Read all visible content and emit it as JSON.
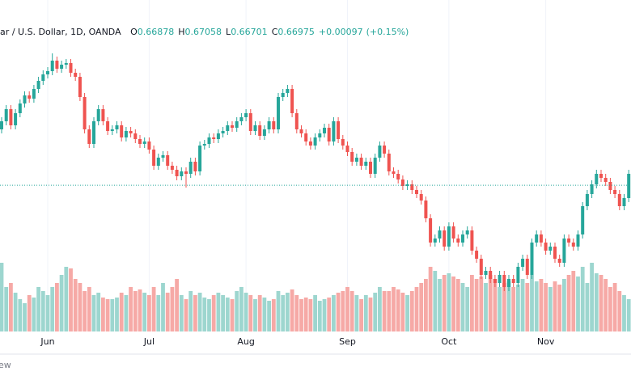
{
  "chart_data": {
    "type": "candlestick",
    "header": {
      "symbol": "lar / U.S. Dollar, 1D, OANDA",
      "ohlc": [
        {
          "label": "O",
          "value": 0.66878
        },
        {
          "label": "H",
          "value": 0.67058
        },
        {
          "label": "L",
          "value": 0.66701
        },
        {
          "label": "C",
          "value": 0.66975
        }
      ],
      "change": "+0.00097",
      "change_pct": "(+0.15%)"
    },
    "footer_text": "ew",
    "up_color": "#26a69a",
    "down_color": "#ef5350",
    "volume_up_color": "#9dd6cf",
    "volume_down_color": "#f6a9a6",
    "grid": true,
    "ylim": [
      0.6155,
      0.7385
    ],
    "vlim": [
      0,
      410
    ],
    "categories": [
      null,
      null,
      null,
      null,
      null,
      null,
      null,
      null,
      null,
      null,
      "Jun",
      null,
      null,
      null,
      null,
      null,
      null,
      null,
      null,
      null,
      null,
      null,
      null,
      null,
      null,
      null,
      null,
      null,
      null,
      null,
      null,
      null,
      "Jul",
      null,
      null,
      null,
      null,
      null,
      null,
      null,
      null,
      null,
      null,
      null,
      null,
      null,
      null,
      null,
      null,
      null,
      null,
      null,
      null,
      "Aug",
      null,
      null,
      null,
      null,
      null,
      null,
      null,
      null,
      null,
      null,
      null,
      null,
      null,
      null,
      null,
      null,
      null,
      null,
      null,
      null,
      null,
      "Sep",
      null,
      null,
      null,
      null,
      null,
      null,
      null,
      null,
      null,
      null,
      null,
      null,
      null,
      null,
      null,
      null,
      null,
      null,
      null,
      null,
      null,
      "Oct",
      null,
      null,
      null,
      null,
      null,
      null,
      null,
      null,
      null,
      null,
      null,
      null,
      null,
      null,
      null,
      null,
      null,
      null,
      null,
      null,
      "Nov",
      null,
      null,
      null,
      null,
      null,
      null,
      null,
      null,
      null,
      null,
      null,
      null,
      null,
      null,
      null,
      null,
      null,
      null
    ],
    "ohlc": [
      [
        0.6905,
        0.695,
        0.689,
        0.6935
      ],
      [
        0.6935,
        0.6995,
        0.692,
        0.698
      ],
      [
        0.698,
        0.6995,
        0.6905,
        0.692
      ],
      [
        0.692,
        0.698,
        0.6905,
        0.6965
      ],
      [
        0.6965,
        0.7016,
        0.695,
        0.7001
      ],
      [
        0.7001,
        0.7046,
        0.6986,
        0.7031
      ],
      [
        0.7031,
        0.7046,
        0.7004,
        0.7019
      ],
      [
        0.7019,
        0.707,
        0.7004,
        0.7055
      ],
      [
        0.7055,
        0.71,
        0.704,
        0.7085
      ],
      [
        0.7085,
        0.7124,
        0.707,
        0.7109
      ],
      [
        0.7109,
        0.7136,
        0.7094,
        0.7121
      ],
      [
        0.7121,
        0.7187,
        0.7106,
        0.716
      ],
      [
        0.716,
        0.7175,
        0.7115,
        0.713
      ],
      [
        0.713,
        0.716,
        0.7115,
        0.7145
      ],
      [
        0.7145,
        0.7166,
        0.713,
        0.7151
      ],
      [
        0.7151,
        0.7166,
        0.71,
        0.7115
      ],
      [
        0.7115,
        0.713,
        0.7085,
        0.71
      ],
      [
        0.71,
        0.7115,
        0.701,
        0.7025
      ],
      [
        0.7025,
        0.704,
        0.689,
        0.6905
      ],
      [
        0.6905,
        0.692,
        0.6836,
        0.6851
      ],
      [
        0.6851,
        0.695,
        0.6836,
        0.6935
      ],
      [
        0.6935,
        0.6995,
        0.692,
        0.698
      ],
      [
        0.698,
        0.6995,
        0.692,
        0.6935
      ],
      [
        0.6935,
        0.695,
        0.6884,
        0.6899
      ],
      [
        0.6899,
        0.692,
        0.6884,
        0.6905
      ],
      [
        0.6905,
        0.6935,
        0.689,
        0.692
      ],
      [
        0.692,
        0.6935,
        0.686,
        0.6875
      ],
      [
        0.6875,
        0.6914,
        0.686,
        0.6899
      ],
      [
        0.6899,
        0.6914,
        0.6875,
        0.689
      ],
      [
        0.689,
        0.6905,
        0.6854,
        0.6869
      ],
      [
        0.6869,
        0.6884,
        0.6836,
        0.6851
      ],
      [
        0.6851,
        0.6875,
        0.6836,
        0.686
      ],
      [
        0.686,
        0.6875,
        0.6815,
        0.683
      ],
      [
        0.683,
        0.6845,
        0.6755,
        0.677
      ],
      [
        0.677,
        0.6815,
        0.6755,
        0.68
      ],
      [
        0.68,
        0.6824,
        0.6785,
        0.6809
      ],
      [
        0.6809,
        0.6824,
        0.6755,
        0.677
      ],
      [
        0.677,
        0.6785,
        0.674,
        0.6755
      ],
      [
        0.6755,
        0.677,
        0.6716,
        0.6731
      ],
      [
        0.6731,
        0.6764,
        0.6716,
        0.6749
      ],
      [
        0.6749,
        0.6764,
        0.6689,
        0.674
      ],
      [
        0.674,
        0.68,
        0.6725,
        0.6785
      ],
      [
        0.6785,
        0.68,
        0.6734,
        0.6749
      ],
      [
        0.6749,
        0.686,
        0.6734,
        0.6845
      ],
      [
        0.6845,
        0.6866,
        0.683,
        0.6851
      ],
      [
        0.6851,
        0.689,
        0.6836,
        0.6875
      ],
      [
        0.6875,
        0.689,
        0.6854,
        0.6869
      ],
      [
        0.6869,
        0.6905,
        0.6854,
        0.689
      ],
      [
        0.689,
        0.6914,
        0.6875,
        0.6899
      ],
      [
        0.6899,
        0.6935,
        0.6884,
        0.692
      ],
      [
        0.692,
        0.6935,
        0.6896,
        0.6911
      ],
      [
        0.6911,
        0.695,
        0.6896,
        0.6935
      ],
      [
        0.6935,
        0.6965,
        0.692,
        0.695
      ],
      [
        0.695,
        0.698,
        0.6935,
        0.6965
      ],
      [
        0.6965,
        0.698,
        0.6884,
        0.6899
      ],
      [
        0.6899,
        0.6935,
        0.6884,
        0.692
      ],
      [
        0.692,
        0.6935,
        0.6866,
        0.6881
      ],
      [
        0.6881,
        0.692,
        0.6866,
        0.6905
      ],
      [
        0.6905,
        0.695,
        0.689,
        0.6935
      ],
      [
        0.6935,
        0.695,
        0.689,
        0.6905
      ],
      [
        0.6905,
        0.704,
        0.689,
        0.7025
      ],
      [
        0.7025,
        0.7055,
        0.701,
        0.704
      ],
      [
        0.704,
        0.707,
        0.7025,
        0.7055
      ],
      [
        0.7055,
        0.707,
        0.695,
        0.6965
      ],
      [
        0.6965,
        0.698,
        0.689,
        0.6905
      ],
      [
        0.6905,
        0.692,
        0.6875,
        0.689
      ],
      [
        0.689,
        0.6905,
        0.6845,
        0.686
      ],
      [
        0.686,
        0.6875,
        0.683,
        0.6845
      ],
      [
        0.6845,
        0.689,
        0.683,
        0.6875
      ],
      [
        0.6875,
        0.6905,
        0.686,
        0.689
      ],
      [
        0.689,
        0.6926,
        0.6875,
        0.6911
      ],
      [
        0.6911,
        0.6926,
        0.6845,
        0.686
      ],
      [
        0.686,
        0.695,
        0.6845,
        0.6935
      ],
      [
        0.6935,
        0.695,
        0.6854,
        0.6869
      ],
      [
        0.6869,
        0.6884,
        0.683,
        0.6845
      ],
      [
        0.6845,
        0.686,
        0.6806,
        0.6821
      ],
      [
        0.6821,
        0.6836,
        0.677,
        0.6785
      ],
      [
        0.6785,
        0.6815,
        0.677,
        0.68
      ],
      [
        0.68,
        0.6815,
        0.6755,
        0.677
      ],
      [
        0.677,
        0.68,
        0.6755,
        0.6785
      ],
      [
        0.6785,
        0.68,
        0.6725,
        0.674
      ],
      [
        0.674,
        0.6815,
        0.6725,
        0.68
      ],
      [
        0.68,
        0.686,
        0.6785,
        0.6845
      ],
      [
        0.6845,
        0.686,
        0.68,
        0.6815
      ],
      [
        0.6815,
        0.683,
        0.6734,
        0.6749
      ],
      [
        0.6749,
        0.6764,
        0.6725,
        0.674
      ],
      [
        0.674,
        0.6755,
        0.6704,
        0.6719
      ],
      [
        0.6719,
        0.6734,
        0.668,
        0.6695
      ],
      [
        0.6695,
        0.6716,
        0.668,
        0.6701
      ],
      [
        0.6701,
        0.6716,
        0.6665,
        0.668
      ],
      [
        0.668,
        0.6695,
        0.665,
        0.6665
      ],
      [
        0.6665,
        0.668,
        0.6626,
        0.6641
      ],
      [
        0.6641,
        0.6656,
        0.656,
        0.6575
      ],
      [
        0.6575,
        0.659,
        0.647,
        0.6485
      ],
      [
        0.6485,
        0.6515,
        0.647,
        0.65
      ],
      [
        0.65,
        0.6545,
        0.6485,
        0.653
      ],
      [
        0.653,
        0.6545,
        0.6455,
        0.647
      ],
      [
        0.647,
        0.656,
        0.6455,
        0.6545
      ],
      [
        0.6545,
        0.656,
        0.6485,
        0.65
      ],
      [
        0.65,
        0.6515,
        0.647,
        0.6485
      ],
      [
        0.6485,
        0.653,
        0.647,
        0.6515
      ],
      [
        0.6515,
        0.6545,
        0.65,
        0.653
      ],
      [
        0.653,
        0.6545,
        0.644,
        0.6455
      ],
      [
        0.6455,
        0.647,
        0.641,
        0.6425
      ],
      [
        0.6425,
        0.644,
        0.635,
        0.6365
      ],
      [
        0.6365,
        0.6395,
        0.635,
        0.638
      ],
      [
        0.638,
        0.6395,
        0.6335,
        0.635
      ],
      [
        0.635,
        0.6365,
        0.632,
        0.6335
      ],
      [
        0.6335,
        0.638,
        0.632,
        0.6365
      ],
      [
        0.6365,
        0.638,
        0.6305,
        0.632
      ],
      [
        0.632,
        0.6365,
        0.6305,
        0.635
      ],
      [
        0.635,
        0.6365,
        0.632,
        0.6335
      ],
      [
        0.6335,
        0.641,
        0.632,
        0.6395
      ],
      [
        0.6395,
        0.644,
        0.638,
        0.6425
      ],
      [
        0.6425,
        0.644,
        0.635,
        0.6365
      ],
      [
        0.6365,
        0.65,
        0.635,
        0.6485
      ],
      [
        0.6485,
        0.653,
        0.647,
        0.6515
      ],
      [
        0.6515,
        0.653,
        0.647,
        0.6485
      ],
      [
        0.6485,
        0.65,
        0.644,
        0.6455
      ],
      [
        0.6455,
        0.6485,
        0.644,
        0.647
      ],
      [
        0.647,
        0.6485,
        0.641,
        0.6425
      ],
      [
        0.6425,
        0.644,
        0.6395,
        0.641
      ],
      [
        0.641,
        0.6515,
        0.6395,
        0.65
      ],
      [
        0.65,
        0.6515,
        0.647,
        0.6485
      ],
      [
        0.6485,
        0.65,
        0.6455,
        0.647
      ],
      [
        0.647,
        0.653,
        0.6455,
        0.6515
      ],
      [
        0.6515,
        0.6635,
        0.65,
        0.662
      ],
      [
        0.662,
        0.668,
        0.6605,
        0.6665
      ],
      [
        0.6665,
        0.6716,
        0.665,
        0.6701
      ],
      [
        0.6701,
        0.6755,
        0.6686,
        0.674
      ],
      [
        0.674,
        0.6755,
        0.671,
        0.6725
      ],
      [
        0.6725,
        0.674,
        0.6695,
        0.671
      ],
      [
        0.671,
        0.6725,
        0.6665,
        0.668
      ],
      [
        0.668,
        0.6695,
        0.665,
        0.6665
      ],
      [
        0.6665,
        0.668,
        0.6605,
        0.662
      ],
      [
        0.662,
        0.6665,
        0.6605,
        0.665
      ],
      [
        0.665,
        0.6755,
        0.6635,
        0.674
      ]
    ],
    "volume": [
      85,
      55,
      60,
      48,
      40,
      35,
      45,
      42,
      55,
      50,
      45,
      55,
      60,
      70,
      80,
      78,
      65,
      60,
      50,
      55,
      45,
      48,
      42,
      40,
      40,
      42,
      48,
      45,
      55,
      50,
      52,
      48,
      45,
      55,
      45,
      60,
      48,
      55,
      65,
      45,
      40,
      50,
      45,
      48,
      42,
      40,
      45,
      48,
      45,
      42,
      40,
      50,
      55,
      48,
      45,
      40,
      45,
      42,
      38,
      40,
      50,
      45,
      48,
      52,
      45,
      40,
      42,
      40,
      45,
      38,
      40,
      42,
      45,
      48,
      50,
      55,
      50,
      45,
      40,
      45,
      42,
      48,
      55,
      50,
      50,
      55,
      52,
      48,
      45,
      50,
      55,
      60,
      65,
      80,
      75,
      65,
      70,
      72,
      68,
      65,
      60,
      55,
      70,
      65,
      68,
      60,
      70,
      65,
      55,
      60,
      62,
      55,
      58,
      65,
      60,
      70,
      62,
      65,
      60,
      55,
      62,
      58,
      65,
      70,
      75,
      68,
      80,
      60,
      85,
      72,
      70,
      65,
      55,
      60,
      50,
      45,
      40
    ]
  }
}
